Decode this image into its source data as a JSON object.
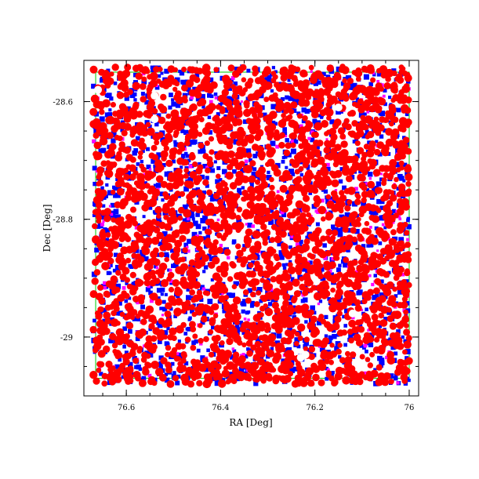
{
  "chart_data": {
    "type": "scatter",
    "xlabel": "RA [Deg]",
    "ylabel": "Dec [Deg]",
    "xlim": [
      76.69,
      75.98
    ],
    "ylim": [
      -29.1,
      -28.53
    ],
    "x_ticks": [
      {
        "value": 76.6,
        "label": "76.6"
      },
      {
        "value": 76.4,
        "label": "76.4"
      },
      {
        "value": 76.2,
        "label": "76.2"
      },
      {
        "value": 76.0,
        "label": "76"
      }
    ],
    "y_ticks": [
      {
        "value": -28.6,
        "label": "-28.6"
      },
      {
        "value": -28.8,
        "label": "-28.8"
      },
      {
        "value": -29.0,
        "label": "-29"
      }
    ],
    "footprint": {
      "ra": [
        76.665,
        76.0
      ],
      "dec": [
        -29.07,
        -28.55
      ],
      "color": "#00cc00"
    },
    "field": {
      "ra_center": 76.335,
      "dec_center": -28.81,
      "ra_halfwidth": 0.335,
      "dec_halfwidth": 0.27
    },
    "series": [
      {
        "color": "#0000ff",
        "marker": "square",
        "density": 1600
      },
      {
        "color": "#ff00ff",
        "marker": "square",
        "density": 260
      },
      {
        "color": "#ff0000",
        "marker": "circle",
        "density": 2600
      }
    ],
    "holes": [
      {
        "ra": 76.66,
        "dec": -28.58
      },
      {
        "ra": 76.54,
        "dec": -28.59
      },
      {
        "ra": 76.54,
        "dec": -28.63
      },
      {
        "ra": 76.15,
        "dec": -28.61
      },
      {
        "ra": 76.22,
        "dec": -29.03
      },
      {
        "ra": 76.23,
        "dec": -29.035
      },
      {
        "ra": 76.12,
        "dec": -28.96
      }
    ]
  }
}
